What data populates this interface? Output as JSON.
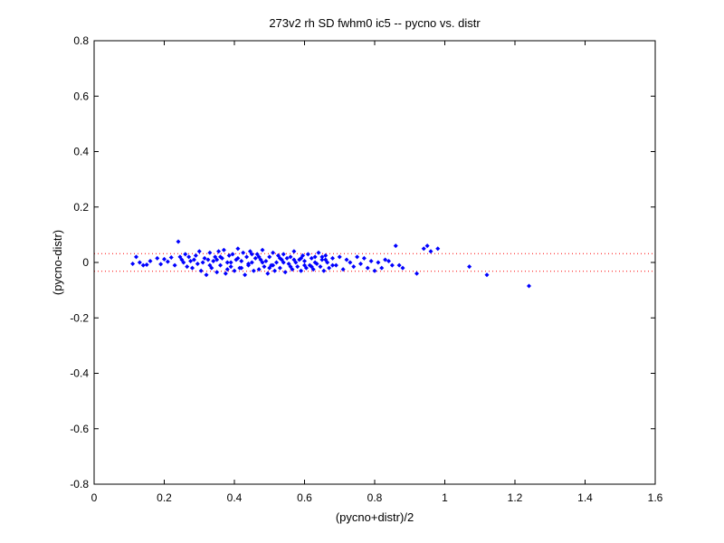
{
  "chart_data": {
    "type": "scatter",
    "title": "273v2 rh SD fwhm0 ic5 -- pycno vs. distr",
    "xlabel": "(pycno+distr)/2",
    "ylabel": "(pycno-distr)",
    "xlim": [
      0,
      1.6
    ],
    "ylim": [
      -0.8,
      0.8
    ],
    "xticks": [
      0,
      0.2,
      0.4,
      0.6,
      0.8,
      1,
      1.2,
      1.4,
      1.6
    ],
    "yticks": [
      -0.8,
      -0.6,
      -0.4,
      -0.2,
      0,
      0.2,
      0.4,
      0.6,
      0.8
    ],
    "xtick_labels": [
      "0",
      "0.2",
      "0.4",
      "0.6",
      "0.8",
      "1",
      "1.2",
      "1.4",
      "1.6"
    ],
    "ytick_labels": [
      "-0.8",
      "-0.6",
      "-0.4",
      "-0.2",
      "0",
      "0.2",
      "0.4",
      "0.6",
      "0.8"
    ],
    "grid": false,
    "marker_color": "#0000ff",
    "reference_line_color": "#ff0000",
    "reference_lines_y": [
      0.032,
      -0.032
    ],
    "series": [
      {
        "points": [
          [
            0.11,
            -0.005
          ],
          [
            0.12,
            0.02
          ],
          [
            0.13,
            0.0
          ],
          [
            0.14,
            -0.01
          ],
          [
            0.15,
            -0.008
          ],
          [
            0.16,
            0.005
          ],
          [
            0.18,
            0.015
          ],
          [
            0.19,
            -0.006
          ],
          [
            0.2,
            0.012
          ],
          [
            0.21,
            0.003
          ],
          [
            0.22,
            0.018
          ],
          [
            0.23,
            -0.01
          ],
          [
            0.24,
            0.075
          ],
          [
            0.245,
            0.02
          ],
          [
            0.25,
            0.01
          ],
          [
            0.255,
            0.0
          ],
          [
            0.26,
            0.03
          ],
          [
            0.265,
            -0.015
          ],
          [
            0.27,
            0.02
          ],
          [
            0.275,
            0.005
          ],
          [
            0.28,
            -0.02
          ],
          [
            0.285,
            0.01
          ],
          [
            0.29,
            0.025
          ],
          [
            0.295,
            -0.005
          ],
          [
            0.3,
            0.04
          ],
          [
            0.305,
            -0.03
          ],
          [
            0.31,
            0.0
          ],
          [
            0.315,
            0.015
          ],
          [
            0.32,
            -0.045
          ],
          [
            0.325,
            0.01
          ],
          [
            0.33,
            0.035
          ],
          [
            0.335,
            -0.02
          ],
          [
            0.34,
            0.005
          ],
          [
            0.345,
            0.02
          ],
          [
            0.35,
            -0.035
          ],
          [
            0.355,
            0.04
          ],
          [
            0.36,
            -0.01
          ],
          [
            0.365,
            0.015
          ],
          [
            0.37,
            0.045
          ],
          [
            0.375,
            -0.04
          ],
          [
            0.38,
            0.0
          ],
          [
            0.385,
            0.025
          ],
          [
            0.39,
            -0.015
          ],
          [
            0.395,
            0.03
          ],
          [
            0.4,
            -0.03
          ],
          [
            0.405,
            0.01
          ],
          [
            0.41,
            0.05
          ],
          [
            0.415,
            -0.02
          ],
          [
            0.42,
            0.005
          ],
          [
            0.425,
            0.035
          ],
          [
            0.43,
            -0.045
          ],
          [
            0.435,
            0.02
          ],
          [
            0.44,
            -0.005
          ],
          [
            0.445,
            0.04
          ],
          [
            0.45,
            0.0
          ],
          [
            0.455,
            -0.03
          ],
          [
            0.46,
            0.015
          ],
          [
            0.465,
            0.03
          ],
          [
            0.47,
            -0.025
          ],
          [
            0.475,
            0.01
          ],
          [
            0.48,
            0.045
          ],
          [
            0.485,
            -0.015
          ],
          [
            0.49,
            0.005
          ],
          [
            0.495,
            -0.04
          ],
          [
            0.5,
            0.02
          ],
          [
            0.505,
            -0.01
          ],
          [
            0.51,
            0.035
          ],
          [
            0.515,
            -0.03
          ],
          [
            0.52,
            0.0
          ],
          [
            0.525,
            0.025
          ],
          [
            0.53,
            -0.02
          ],
          [
            0.535,
            0.01
          ],
          [
            0.54,
            0.03
          ],
          [
            0.545,
            -0.035
          ],
          [
            0.55,
            0.015
          ],
          [
            0.555,
            -0.005
          ],
          [
            0.56,
            0.02
          ],
          [
            0.565,
            -0.025
          ],
          [
            0.57,
            0.04
          ],
          [
            0.575,
            0.0
          ],
          [
            0.58,
            -0.015
          ],
          [
            0.585,
            0.01
          ],
          [
            0.59,
            -0.03
          ],
          [
            0.595,
            0.025
          ],
          [
            0.6,
            0.005
          ],
          [
            0.605,
            -0.02
          ],
          [
            0.61,
            0.03
          ],
          [
            0.615,
            -0.01
          ],
          [
            0.62,
            0.015
          ],
          [
            0.625,
            -0.025
          ],
          [
            0.63,
            0.02
          ],
          [
            0.635,
            -0.005
          ],
          [
            0.64,
            0.035
          ],
          [
            0.645,
            -0.015
          ],
          [
            0.65,
            0.01
          ],
          [
            0.655,
            -0.03
          ],
          [
            0.66,
            0.025
          ],
          [
            0.665,
            0.0
          ],
          [
            0.67,
            -0.02
          ],
          [
            0.68,
            0.015
          ],
          [
            0.69,
            -0.01
          ],
          [
            0.7,
            0.02
          ],
          [
            0.71,
            -0.025
          ],
          [
            0.72,
            0.01
          ],
          [
            0.73,
            0.0
          ],
          [
            0.74,
            -0.015
          ],
          [
            0.75,
            0.02
          ],
          [
            0.76,
            -0.005
          ],
          [
            0.77,
            0.015
          ],
          [
            0.78,
            -0.02
          ],
          [
            0.79,
            0.005
          ],
          [
            0.8,
            -0.03
          ],
          [
            0.81,
            0.0
          ],
          [
            0.82,
            -0.02
          ],
          [
            0.83,
            0.01
          ],
          [
            0.84,
            0.005
          ],
          [
            0.85,
            -0.01
          ],
          [
            0.86,
            0.06
          ],
          [
            0.87,
            -0.01
          ],
          [
            0.88,
            -0.02
          ],
          [
            0.92,
            -0.04
          ],
          [
            0.94,
            0.05
          ],
          [
            0.95,
            0.06
          ],
          [
            0.96,
            0.04
          ],
          [
            0.98,
            0.05
          ],
          [
            1.07,
            -0.015
          ],
          [
            1.12,
            -0.045
          ],
          [
            1.24,
            -0.085
          ],
          [
            0.33,
            -0.01
          ],
          [
            0.36,
            0.02
          ],
          [
            0.39,
            0.0
          ],
          [
            0.42,
            -0.02
          ],
          [
            0.45,
            0.03
          ],
          [
            0.48,
            0.0
          ],
          [
            0.51,
            -0.01
          ],
          [
            0.54,
            0.0
          ],
          [
            0.57,
            0.01
          ],
          [
            0.6,
            -0.01
          ],
          [
            0.63,
            0.0
          ],
          [
            0.66,
            0.01
          ],
          [
            0.35,
            0.01
          ],
          [
            0.38,
            -0.025
          ],
          [
            0.41,
            0.015
          ],
          [
            0.44,
            -0.01
          ],
          [
            0.47,
            0.02
          ],
          [
            0.5,
            -0.02
          ],
          [
            0.53,
            0.015
          ],
          [
            0.56,
            -0.015
          ],
          [
            0.59,
            0.015
          ],
          [
            0.62,
            -0.015
          ],
          [
            0.65,
            0.02
          ],
          [
            0.68,
            -0.01
          ]
        ]
      }
    ]
  }
}
